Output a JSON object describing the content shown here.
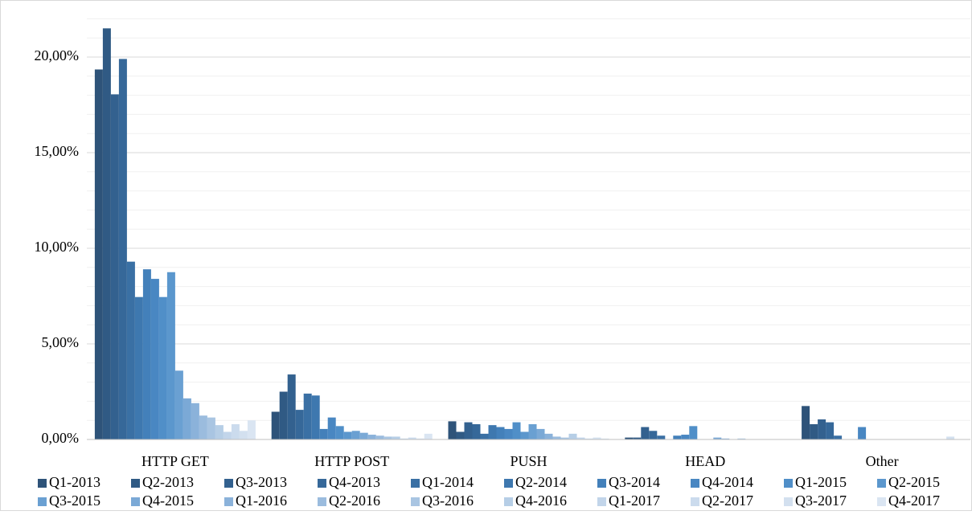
{
  "chart_data": {
    "type": "bar",
    "categories": [
      "HTTP GET",
      "HTTP POST",
      "PUSH",
      "HEAD",
      "Other"
    ],
    "series": [
      {
        "name": "Q1-2013",
        "color": "#2e5379",
        "values": [
          19.35,
          1.45,
          0.95,
          0.1,
          1.75
        ]
      },
      {
        "name": "Q2-2013",
        "color": "#305a84",
        "values": [
          21.5,
          2.5,
          0.4,
          0.1,
          0.8
        ]
      },
      {
        "name": "Q3-2013",
        "color": "#33618f",
        "values": [
          18.05,
          3.4,
          0.9,
          0.65,
          1.05
        ]
      },
      {
        "name": "Q4-2013",
        "color": "#366899",
        "values": [
          19.9,
          1.55,
          0.8,
          0.45,
          0.9
        ]
      },
      {
        "name": "Q1-2014",
        "color": "#3a70a4",
        "values": [
          9.3,
          2.4,
          0.3,
          0.2,
          0.2
        ]
      },
      {
        "name": "Q2-2014",
        "color": "#3e78af",
        "values": [
          7.45,
          2.3,
          0.75,
          0,
          0
        ]
      },
      {
        "name": "Q3-2014",
        "color": "#4380ba",
        "values": [
          8.9,
          0.55,
          0.65,
          0.2,
          0
        ]
      },
      {
        "name": "Q4-2014",
        "color": "#4987c2",
        "values": [
          8.4,
          1.15,
          0.55,
          0.25,
          0.65
        ]
      },
      {
        "name": "Q1-2015",
        "color": "#508fc8",
        "values": [
          7.45,
          0.7,
          0.9,
          0.7,
          0
        ]
      },
      {
        "name": "Q2-2015",
        "color": "#5b97cd",
        "values": [
          8.75,
          0.4,
          0.4,
          0,
          0
        ]
      },
      {
        "name": "Q3-2015",
        "color": "#6aa0d2",
        "values": [
          3.6,
          0.45,
          0.8,
          0,
          0
        ]
      },
      {
        "name": "Q4-2015",
        "color": "#7ba9d6",
        "values": [
          2.15,
          0.35,
          0.55,
          0.1,
          0
        ]
      },
      {
        "name": "Q1-2016",
        "color": "#8bb2da",
        "values": [
          1.9,
          0.25,
          0.3,
          0.05,
          0
        ]
      },
      {
        "name": "Q2-2016",
        "color": "#9bbcde",
        "values": [
          1.25,
          0.2,
          0.15,
          0,
          0
        ]
      },
      {
        "name": "Q3-2016",
        "color": "#a9c5e2",
        "values": [
          1.15,
          0.15,
          0.1,
          0.05,
          0
        ]
      },
      {
        "name": "Q4-2016",
        "color": "#b6cee6",
        "values": [
          0.75,
          0.15,
          0.3,
          0,
          0
        ]
      },
      {
        "name": "Q1-2017",
        "color": "#c2d5ea",
        "values": [
          0.4,
          0.05,
          0.1,
          0,
          0
        ]
      },
      {
        "name": "Q2-2017",
        "color": "#cbdbed",
        "values": [
          0.8,
          0.1,
          0.05,
          0,
          0
        ]
      },
      {
        "name": "Q3-2017",
        "color": "#d3e0ef",
        "values": [
          0.45,
          0.05,
          0.1,
          0,
          0.15
        ]
      },
      {
        "name": "Q4-2017",
        "color": "#dae5f2",
        "values": [
          1.0,
          0.3,
          0.05,
          0,
          0
        ]
      }
    ],
    "ylim": [
      0,
      22
    ],
    "yticks": [
      {
        "value": 0,
        "label": "0,00%"
      },
      {
        "value": 5,
        "label": "5,00%"
      },
      {
        "value": 10,
        "label": "10,00%"
      },
      {
        "value": 15,
        "label": "15,00%"
      },
      {
        "value": 20,
        "label": "20,00%"
      }
    ],
    "yticks_minor": [
      1,
      2,
      3,
      4,
      6,
      7,
      8,
      9,
      11,
      12,
      13,
      14,
      16,
      17,
      18,
      19,
      21,
      22
    ],
    "grid": true,
    "legend": "bottom"
  }
}
